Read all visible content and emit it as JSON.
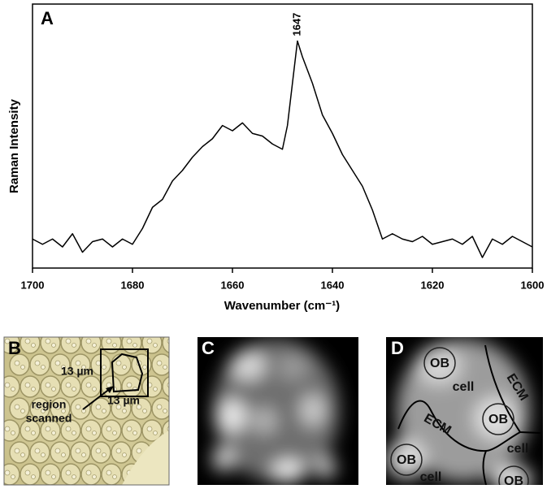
{
  "chart_data": {
    "type": "line",
    "panel_label": "A",
    "x_label": "Wavenumber (cm⁻¹)",
    "y_label": "Raman Intensity",
    "color": "#000000",
    "grid": false,
    "x": [
      1700,
      1698,
      1696,
      1694,
      1692,
      1690,
      1688,
      1686,
      1684,
      1682,
      1680,
      1678,
      1676,
      1674,
      1672,
      1670,
      1668,
      1666,
      1664,
      1662,
      1660,
      1658,
      1656,
      1654,
      1652,
      1650,
      1649,
      1648,
      1647,
      1646,
      1644,
      1642,
      1640,
      1638,
      1636,
      1634,
      1632,
      1630,
      1628,
      1626,
      1624,
      1622,
      1620,
      1618,
      1616,
      1614,
      1612,
      1610,
      1608,
      1606,
      1604,
      1602,
      1600
    ],
    "values": [
      11,
      9,
      11,
      8,
      13,
      6,
      10,
      11,
      8,
      11,
      9,
      15,
      23,
      26,
      33,
      37,
      42,
      46,
      49,
      54,
      52,
      55,
      51,
      50,
      47,
      45,
      54,
      70,
      86,
      80,
      70,
      58,
      51,
      43,
      37,
      31,
      22,
      11,
      13,
      11,
      10,
      12,
      9,
      10,
      11,
      9,
      12,
      4,
      11,
      9,
      12,
      10,
      8
    ],
    "xlim": [
      1700,
      1600
    ],
    "xticks": [
      1700,
      1680,
      1660,
      1640,
      1620,
      1600
    ],
    "ylim": [
      0,
      100
    ],
    "annotations": [
      {
        "x": 1647,
        "y": 86,
        "label": "1647"
      }
    ]
  },
  "panels": {
    "b": {
      "label": "B",
      "side_x": "13 µm",
      "side_y": "13 µm",
      "region": [
        "region",
        "scanned"
      ]
    },
    "c": {
      "label": "C"
    },
    "d": {
      "label": "D",
      "ob": [
        "OB",
        "OB",
        "OB",
        "OB"
      ],
      "cell": [
        "cell",
        "cell",
        "cell"
      ],
      "ecm": [
        "ECM",
        "ECM"
      ]
    }
  }
}
